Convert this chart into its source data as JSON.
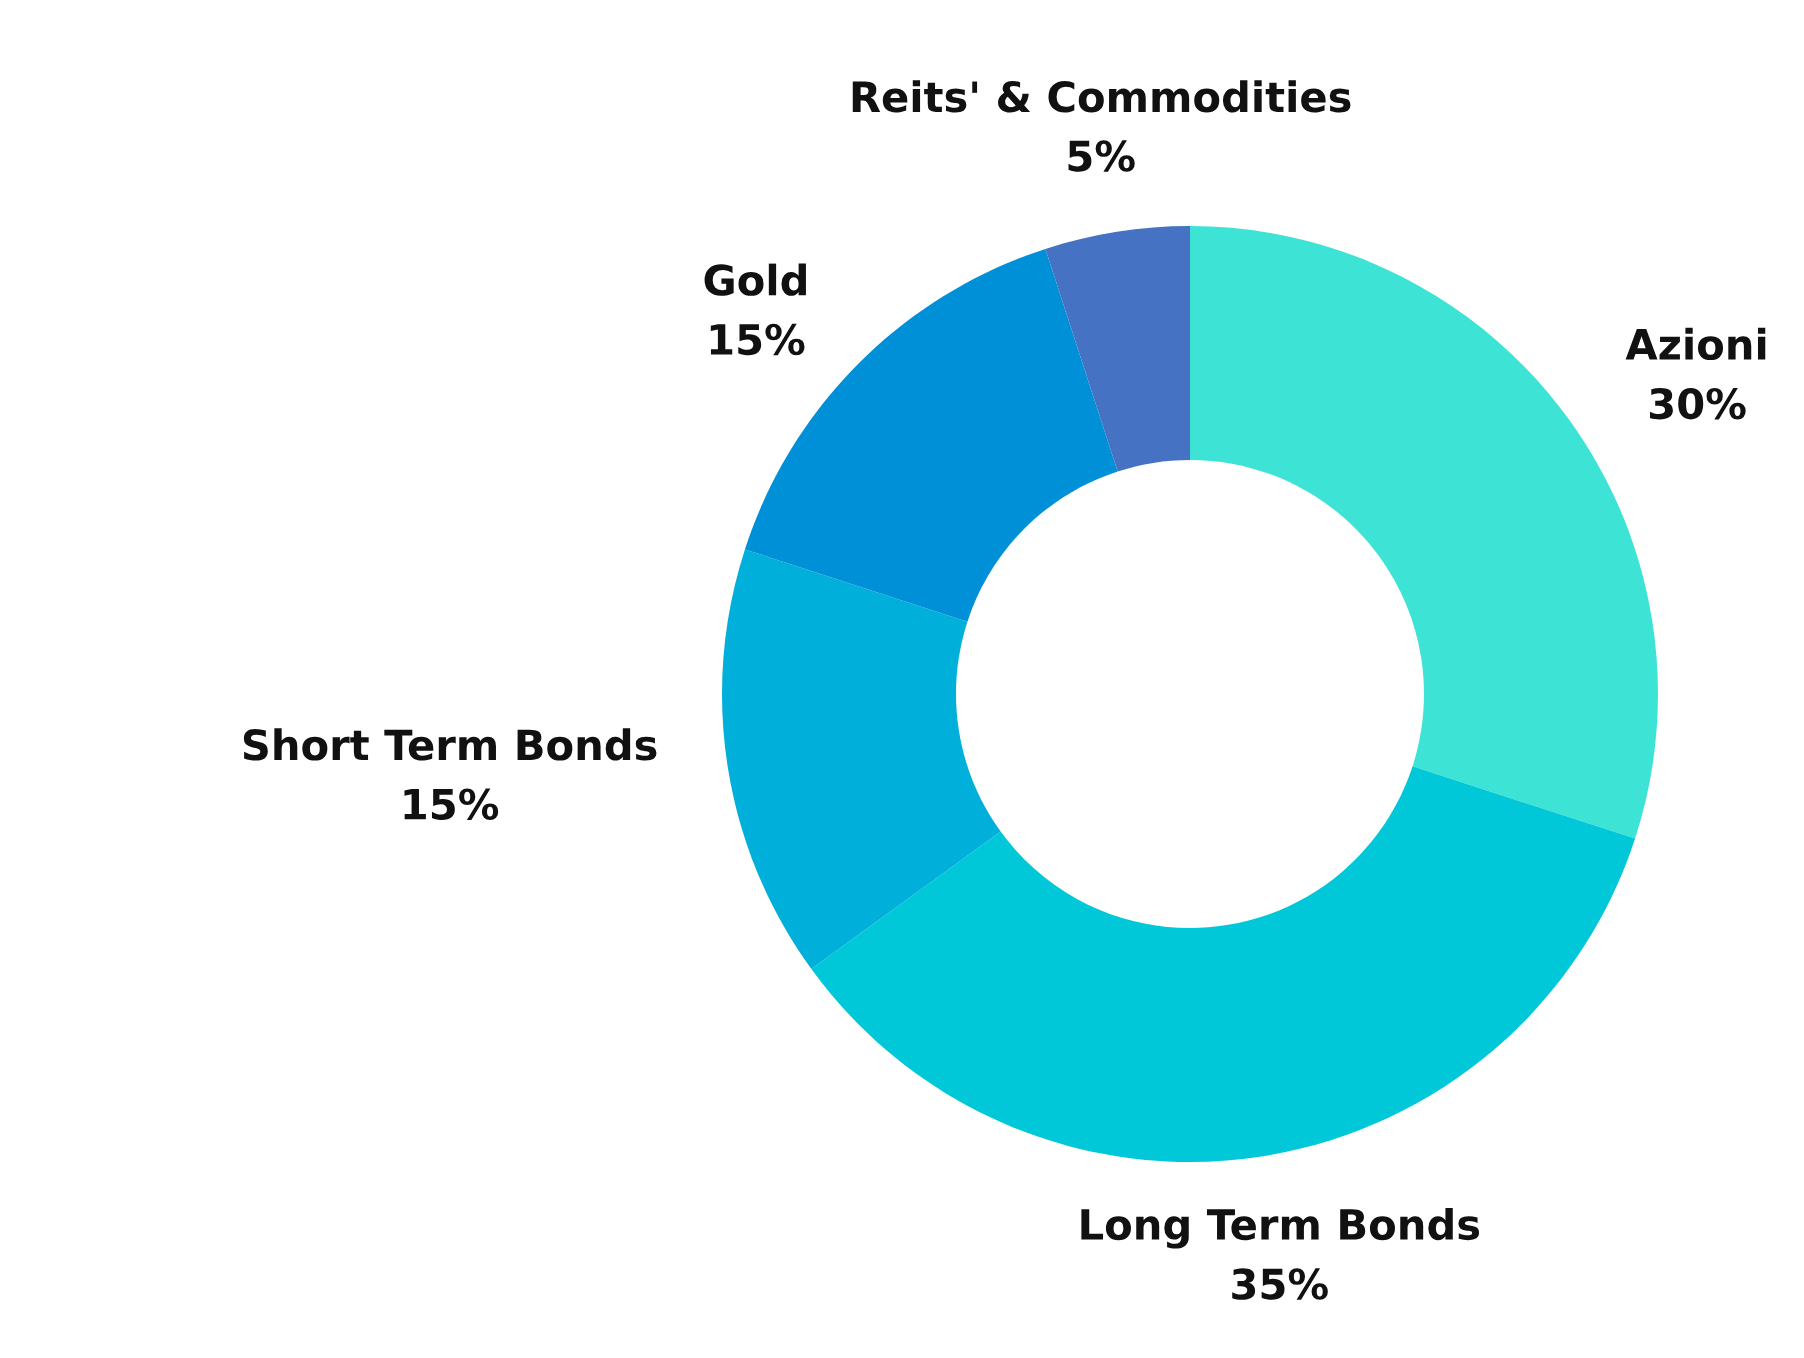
{
  "chart_data": {
    "type": "donut",
    "categories": [
      "Azioni",
      "Long Term Bonds",
      "Short Term Bonds",
      "Gold",
      "Reits' & Commodities"
    ],
    "values": [
      30,
      35,
      15,
      15,
      5
    ],
    "value_labels": [
      "30%",
      "35%",
      "15%",
      "15%",
      "5%"
    ],
    "colors": [
      "#3de3d5",
      "#00c8d8",
      "#00b0da",
      "#0090d8",
      "#4672c4"
    ],
    "legend": false
  }
}
